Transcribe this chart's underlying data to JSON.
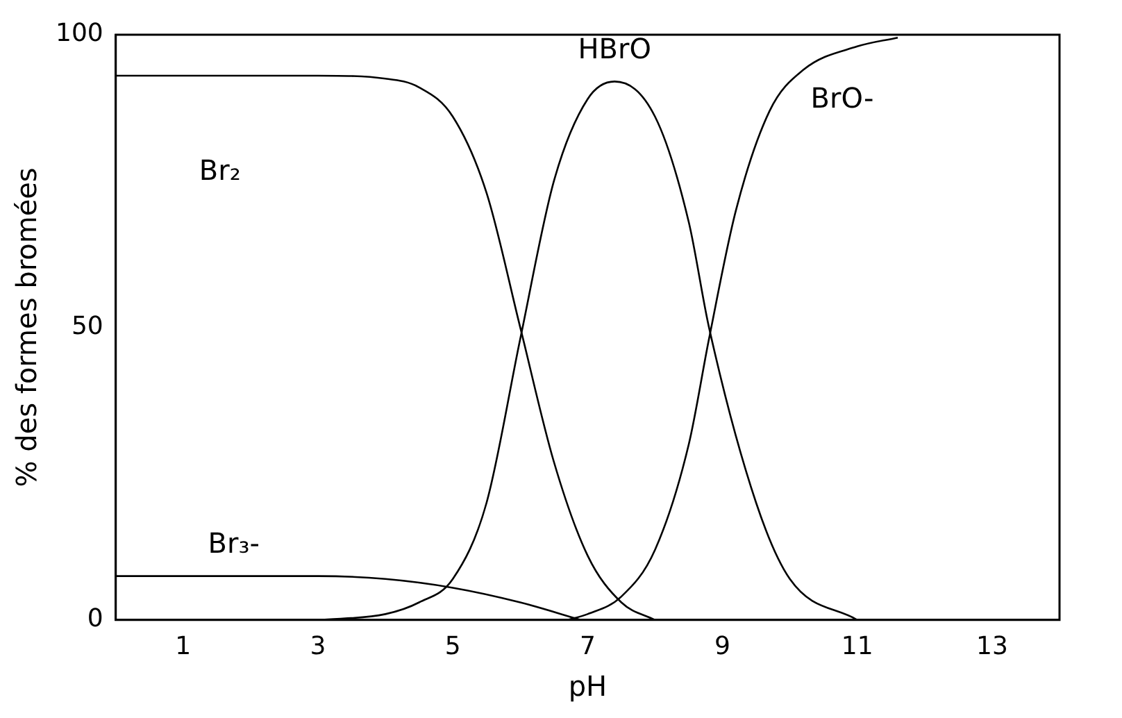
{
  "chart_data": {
    "type": "line",
    "xlabel": "pH",
    "ylabel": "% des formes bromées",
    "xlim": [
      0,
      14
    ],
    "xticks": [
      1,
      3,
      5,
      7,
      9,
      11,
      13
    ],
    "ylim": [
      0,
      100
    ],
    "yticks": [
      0,
      50,
      100
    ],
    "grid": false,
    "legend": false,
    "marker": "none",
    "line_style": "solid",
    "series": [
      {
        "name": "Br₂",
        "color": "#000000",
        "x": [
          0,
          3,
          4,
          4.5,
          5,
          5.5,
          6,
          6.5,
          7,
          7.5,
          8
        ],
        "values": [
          93,
          93,
          92.5,
          91,
          86,
          73,
          50,
          27,
          11,
          3,
          0
        ]
      },
      {
        "name": "HBrO",
        "color": "#000000",
        "x": [
          3,
          4,
          4.5,
          5,
          5.5,
          6,
          6.5,
          7,
          7.4,
          8,
          8.5,
          8.8,
          9.5,
          10,
          11
        ],
        "values": [
          0,
          1,
          3,
          7,
          20,
          48,
          75,
          89,
          92,
          86,
          68,
          50,
          20,
          7,
          0
        ]
      },
      {
        "name": "BrO-",
        "color": "#000000",
        "x": [
          6.7,
          7,
          7.5,
          8,
          8.5,
          8.8,
          9.2,
          9.7,
          10.2,
          11,
          11.6
        ],
        "values": [
          0,
          1,
          4,
          12,
          30,
          48,
          70,
          87,
          94,
          98,
          99.5
        ]
      },
      {
        "name": "Br₃-",
        "color": "#000000",
        "x": [
          0,
          3,
          4,
          5,
          6,
          6.9
        ],
        "values": [
          7.5,
          7.5,
          7,
          5.5,
          3,
          0
        ]
      }
    ]
  }
}
